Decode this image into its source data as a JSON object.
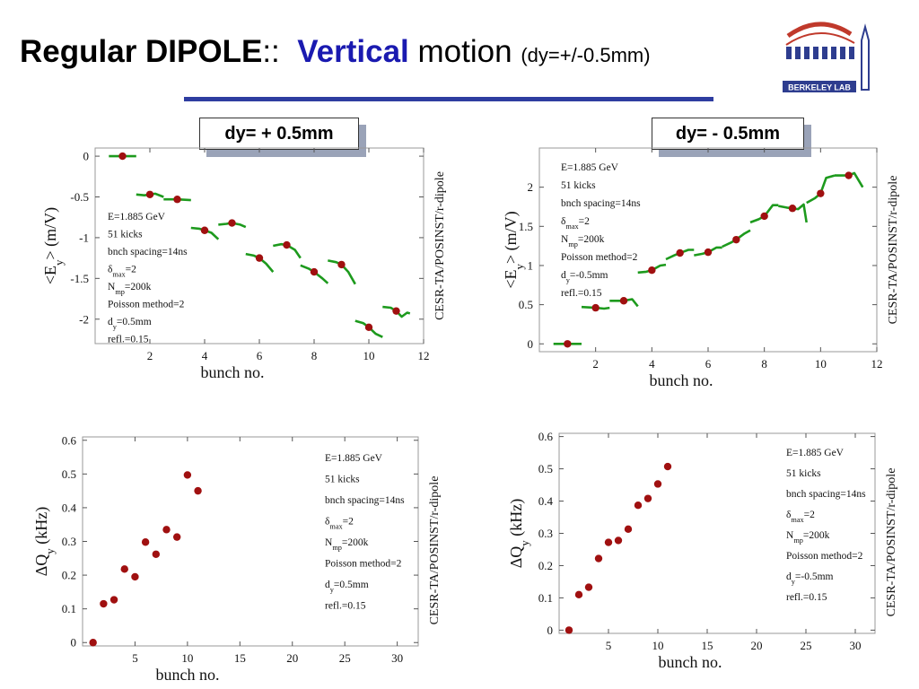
{
  "title": {
    "part1": "Regular DIPOLE",
    "sep": "::",
    "part2": "Vertical",
    "part3": "motion",
    "part4": "(dy=+/-0.5mm)"
  },
  "logo": {
    "text": "BERKELEY LAB"
  },
  "panels": {
    "label_left": "dy= + 0.5mm",
    "label_right": "dy= - 0.5mm"
  },
  "colors": {
    "curve": "#1d9a1d",
    "point": "#a01010",
    "rule": "#2e3da0"
  },
  "chart_data": [
    {
      "type": "line",
      "xlabel": "bunch no.",
      "ylabel": "<Ey> (m/V)",
      "side_label": "CESR-TA/POSINST/r-dipole",
      "xlim": [
        0,
        12
      ],
      "ylim": [
        -2.3,
        0.1
      ],
      "xticks": [
        "2",
        "4",
        "6",
        "8",
        "10",
        "12"
      ],
      "yticks": [
        "0",
        "-0.5",
        "-1",
        "-1.5",
        "-2"
      ],
      "xtick_vals": [
        2,
        4,
        6,
        8,
        10,
        12
      ],
      "ytick_vals": [
        0,
        -0.5,
        -1,
        -1.5,
        -2
      ],
      "annotation": [
        "E=1.885 GeV",
        "51 kicks",
        "bnch spacing=14ns",
        "δmax=2",
        "Nmp=200k",
        "Poisson method=2",
        "dy=0.5mm",
        "refl.=0.15"
      ],
      "points": {
        "x": [
          1,
          2,
          3,
          4,
          5,
          6,
          7,
          8,
          9,
          10,
          11
        ],
        "y": [
          0,
          -0.47,
          -0.53,
          -0.91,
          -0.82,
          -1.25,
          -1.09,
          -1.42,
          -1.33,
          -2.1,
          -1.9
        ]
      },
      "segments": [
        [
          [
            0.5,
            0
          ],
          [
            1.5,
            0
          ]
        ],
        [
          [
            1.5,
            -0.47
          ],
          [
            1.8,
            -0.48
          ],
          [
            2.0,
            -0.47
          ],
          [
            2.2,
            -0.46
          ],
          [
            2.5,
            -0.5
          ]
        ],
        [
          [
            2.5,
            -0.53
          ],
          [
            3.0,
            -0.53
          ],
          [
            3.5,
            -0.54
          ]
        ],
        [
          [
            3.5,
            -0.88
          ],
          [
            3.8,
            -0.89
          ],
          [
            4.0,
            -0.91
          ],
          [
            4.25,
            -0.94
          ],
          [
            4.5,
            -1.02
          ]
        ],
        [
          [
            4.5,
            -0.84
          ],
          [
            4.8,
            -0.83
          ],
          [
            5.0,
            -0.82
          ],
          [
            5.3,
            -0.84
          ],
          [
            5.5,
            -0.87
          ]
        ],
        [
          [
            5.5,
            -1.2
          ],
          [
            5.8,
            -1.22
          ],
          [
            6.0,
            -1.25
          ],
          [
            6.25,
            -1.32
          ],
          [
            6.5,
            -1.42
          ]
        ],
        [
          [
            6.5,
            -1.1
          ],
          [
            6.8,
            -1.08
          ],
          [
            7.0,
            -1.09
          ],
          [
            7.3,
            -1.15
          ],
          [
            7.5,
            -1.25
          ]
        ],
        [
          [
            7.5,
            -1.34
          ],
          [
            7.8,
            -1.38
          ],
          [
            8.0,
            -1.42
          ],
          [
            8.3,
            -1.5
          ],
          [
            8.5,
            -1.56
          ]
        ],
        [
          [
            8.5,
            -1.28
          ],
          [
            8.8,
            -1.3
          ],
          [
            9.0,
            -1.33
          ],
          [
            9.25,
            -1.42
          ],
          [
            9.5,
            -1.57
          ]
        ],
        [
          [
            9.5,
            -2.02
          ],
          [
            9.8,
            -2.05
          ],
          [
            10.0,
            -2.1
          ],
          [
            10.25,
            -2.18
          ],
          [
            10.5,
            -2.22
          ]
        ],
        [
          [
            10.5,
            -1.85
          ],
          [
            10.8,
            -1.86
          ],
          [
            11.0,
            -1.9
          ],
          [
            11.2,
            -1.97
          ],
          [
            11.4,
            -1.92
          ],
          [
            11.5,
            -1.93
          ]
        ]
      ]
    },
    {
      "type": "line",
      "xlabel": "bunch no.",
      "ylabel": "<Ey> (m/V)",
      "side_label": "CESR-TA/POSINST/r-dipole",
      "xlim": [
        0,
        12
      ],
      "ylim": [
        -0.1,
        2.5
      ],
      "xticks": [
        "2",
        "4",
        "6",
        "8",
        "10",
        "12"
      ],
      "yticks": [
        "0",
        "0.5",
        "1",
        "1.5",
        "2"
      ],
      "xtick_vals": [
        2,
        4,
        6,
        8,
        10,
        12
      ],
      "ytick_vals": [
        0,
        0.5,
        1,
        1.5,
        2
      ],
      "annotation": [
        "E=1.885 GeV",
        "51 kicks",
        "bnch spacing=14ns",
        "δmax=2",
        "Nmp=200k",
        "Poisson method=2",
        "dy=-0.5mm",
        "refl.=0.15"
      ],
      "points": {
        "x": [
          1,
          2,
          3,
          4,
          5,
          6,
          7,
          8,
          9,
          10,
          11
        ],
        "y": [
          0,
          0.46,
          0.55,
          0.94,
          1.16,
          1.17,
          1.33,
          1.63,
          1.73,
          1.92,
          2.15
        ]
      },
      "segments": [
        [
          [
            0.5,
            0
          ],
          [
            1.5,
            0
          ]
        ],
        [
          [
            1.5,
            0.47
          ],
          [
            2.0,
            0.46
          ],
          [
            2.3,
            0.45
          ],
          [
            2.5,
            0.46
          ]
        ],
        [
          [
            2.5,
            0.55
          ],
          [
            3.0,
            0.55
          ],
          [
            3.3,
            0.57
          ],
          [
            3.5,
            0.48
          ]
        ],
        [
          [
            3.5,
            0.91
          ],
          [
            3.8,
            0.92
          ],
          [
            4.0,
            0.94
          ],
          [
            4.3,
            1.0
          ],
          [
            4.5,
            1.01
          ]
        ],
        [
          [
            4.5,
            1.08
          ],
          [
            4.8,
            1.13
          ],
          [
            5.0,
            1.16
          ],
          [
            5.3,
            1.2
          ],
          [
            5.5,
            1.2
          ]
        ],
        [
          [
            5.5,
            1.13
          ],
          [
            5.8,
            1.15
          ],
          [
            6.0,
            1.17
          ],
          [
            6.3,
            1.23
          ],
          [
            6.5,
            1.23
          ]
        ],
        [
          [
            6.5,
            1.24
          ],
          [
            6.8,
            1.29
          ],
          [
            7.0,
            1.33
          ],
          [
            7.3,
            1.41
          ],
          [
            7.5,
            1.45
          ]
        ],
        [
          [
            7.5,
            1.55
          ],
          [
            7.8,
            1.59
          ],
          [
            8.0,
            1.63
          ],
          [
            8.3,
            1.77
          ],
          [
            8.5,
            1.77
          ]
        ],
        [
          [
            8.5,
            1.76
          ],
          [
            8.8,
            1.74
          ],
          [
            9.0,
            1.73
          ],
          [
            9.2,
            1.72
          ],
          [
            9.4,
            1.78
          ],
          [
            9.5,
            1.55
          ]
        ],
        [
          [
            9.5,
            1.8
          ],
          [
            9.8,
            1.86
          ],
          [
            10.0,
            1.92
          ],
          [
            10.2,
            2.12
          ],
          [
            10.5,
            2.15
          ]
        ],
        [
          [
            10.5,
            2.15
          ],
          [
            10.8,
            2.15
          ],
          [
            11.0,
            2.15
          ],
          [
            11.2,
            2.18
          ],
          [
            11.5,
            2.0
          ]
        ]
      ]
    },
    {
      "type": "scatter",
      "xlabel": "bunch no.",
      "ylabel": "ΔQy (kHz)",
      "side_label": "CESR-TA/POSINST/r-dipole",
      "xlim": [
        0,
        32
      ],
      "ylim": [
        -0.01,
        0.61
      ],
      "xticks": [
        "5",
        "10",
        "15",
        "20",
        "25",
        "30"
      ],
      "yticks": [
        "0",
        "0.1",
        "0.2",
        "0.3",
        "0.4",
        "0.5",
        "0.6"
      ],
      "xtick_vals": [
        5,
        10,
        15,
        20,
        25,
        30
      ],
      "ytick_vals": [
        0,
        0.1,
        0.2,
        0.3,
        0.4,
        0.5,
        0.6
      ],
      "annotation": [
        "E=1.885 GeV",
        "51 kicks",
        "bnch spacing=14ns",
        "δmax=2",
        "Nmp=200k",
        "Poisson method=2",
        "dy=0.5mm",
        "refl.=0.15"
      ],
      "points": {
        "x": [
          1,
          2,
          3,
          4,
          5,
          6,
          7,
          8,
          9,
          10,
          11
        ],
        "y": [
          0.0,
          0.115,
          0.127,
          0.218,
          0.195,
          0.298,
          0.262,
          0.335,
          0.313,
          0.497,
          0.45
        ]
      }
    },
    {
      "type": "scatter",
      "xlabel": "bunch no.",
      "ylabel": "ΔQy (kHz)",
      "side_label": "CESR-TA/POSINST/r-dipole",
      "xlim": [
        0,
        32
      ],
      "ylim": [
        -0.01,
        0.61
      ],
      "xticks": [
        "5",
        "10",
        "15",
        "20",
        "25",
        "30"
      ],
      "yticks": [
        "0",
        "0.1",
        "0.2",
        "0.3",
        "0.4",
        "0.5",
        "0.6"
      ],
      "xtick_vals": [
        5,
        10,
        15,
        20,
        25,
        30
      ],
      "ytick_vals": [
        0,
        0.1,
        0.2,
        0.3,
        0.4,
        0.5,
        0.6
      ],
      "annotation": [
        "E=1.885 GeV",
        "51 kicks",
        "bnch spacing=14ns",
        "δmax=2",
        "Nmp=200k",
        "Poisson method=2",
        "dy=-0.5mm",
        "refl.=0.15"
      ],
      "points": {
        "x": [
          1,
          2,
          3,
          4,
          5,
          6,
          7,
          8,
          9,
          10,
          11
        ],
        "y": [
          0.0,
          0.11,
          0.133,
          0.222,
          0.272,
          0.278,
          0.313,
          0.387,
          0.408,
          0.453,
          0.507
        ]
      }
    }
  ]
}
